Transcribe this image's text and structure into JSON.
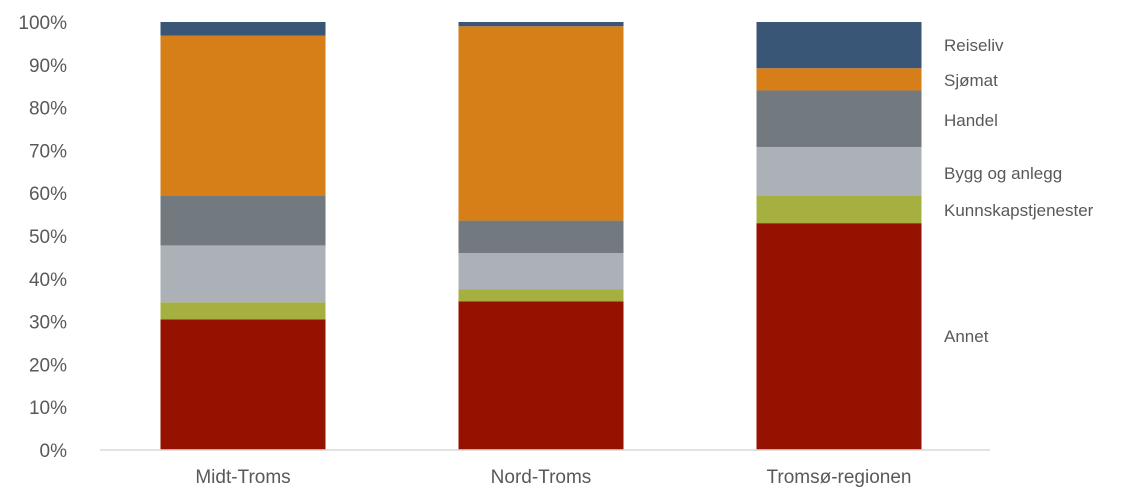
{
  "chart_data": {
    "type": "bar",
    "stacked": true,
    "percent_stacked": true,
    "title": "",
    "xlabel": "",
    "ylabel": "",
    "ylim": [
      0,
      100
    ],
    "y_tick_labels": [
      "0%",
      "10%",
      "20%",
      "30%",
      "40%",
      "50%",
      "60%",
      "70%",
      "80%",
      "90%",
      "100%"
    ],
    "categories": [
      "Midt-Troms",
      "Nord-Troms",
      "Tromsø-regionen"
    ],
    "series": [
      {
        "name": "Annet",
        "color": "#951200",
        "values": [
          30.5,
          34.7,
          53.0
        ]
      },
      {
        "name": "Kunnskapstjenester",
        "color": "#A5B041",
        "values": [
          4.0,
          2.8,
          6.5
        ]
      },
      {
        "name": "Bygg og anlegg",
        "color": "#ABB1B7",
        "values": [
          13.3,
          8.5,
          11.3
        ]
      },
      {
        "name": "Handel",
        "color": "#72797F",
        "values": [
          11.7,
          7.6,
          13.2
        ]
      },
      {
        "name": "Sjømat",
        "color": "#D67E18",
        "values": [
          37.3,
          45.4,
          5.2
        ]
      },
      {
        "name": "Reiseliv",
        "color": "#3A5677",
        "values": [
          3.2,
          1.0,
          10.8
        ]
      }
    ],
    "grid": false,
    "legend_placement": "right, inline labels aligned with Tromsø-regionen segments"
  }
}
